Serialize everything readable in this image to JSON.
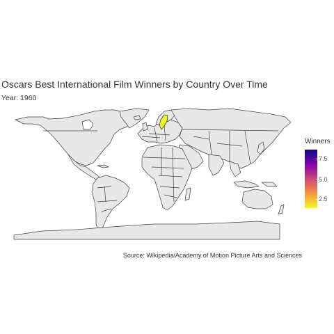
{
  "title": "Oscars Best International Film Winners by Country Over Time",
  "subtitle": "Year: 1960",
  "caption": "Source: Wikipedia/Academy of Motion Picture Arts and Sciences",
  "legend": {
    "title": "Winners",
    "ticks": [
      "7.5",
      "5.0",
      "2.5"
    ],
    "palette": [
      "#0d0887",
      "#7e03a8",
      "#cc4778",
      "#f89540",
      "#f0f921"
    ]
  },
  "map_style": {
    "land_fill": "#e8e8e8",
    "border": "#404040",
    "highlight_fill": "#f0f921"
  },
  "highlighted_regions": [
    {
      "region": "Sweden",
      "winners": 1
    }
  ]
}
